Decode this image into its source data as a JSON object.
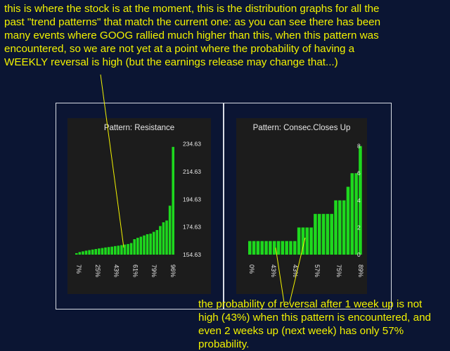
{
  "annotations": {
    "top": [
      "this is where the stock is at the moment, this is the distribution graphs for all the",
      "past \"trend patterns\" that match the current one: as you can see there has been",
      "many events where GOOG rallied much higher than this, when this pattern was",
      "encountered, so we are not yet at a point where the probability of having a",
      "WEEKLY reversal is high (but the earnings release may change that...)"
    ],
    "bottom": [
      "the probability of reversal after 1 week up is not",
      "high (43%) when this pattern is encountered, and",
      "even 2 weeks up (next week) has only 57%",
      "probability."
    ]
  },
  "colors": {
    "background": "#0b1533",
    "annotation": "#f2f200",
    "panel": "#1c1c1c",
    "bar": "#1ed81e",
    "text": "#e6e6e6",
    "frame": "#d8dce4"
  },
  "chart_data": [
    {
      "type": "bar",
      "title": "Pattern: Resistance",
      "x_tick_labels": [
        "7%",
        "25%",
        "43%",
        "61%",
        "79%",
        "96%"
      ],
      "y_tick_labels": [
        "154.63",
        "174.63",
        "194.63",
        "214.63",
        "234.63"
      ],
      "ylim": [
        154.63,
        238
      ],
      "values": [
        155.7,
        156.5,
        157.0,
        157.5,
        157.9,
        158.3,
        158.7,
        159.1,
        159.4,
        159.8,
        160.1,
        160.4,
        160.8,
        161.1,
        161.5,
        161.9,
        162.3,
        163.0,
        165.8,
        166.8,
        167.6,
        168.5,
        169.4,
        169.8,
        171.1,
        172.4,
        175.3,
        178.0,
        179.3,
        190.0,
        232.5
      ],
      "y_axis_side": "right",
      "grid": false,
      "legend": "none"
    },
    {
      "type": "bar",
      "title": "Pattern: Consec.Closes Up",
      "x_tick_labels": [
        "0%",
        "43%",
        "43%",
        "57%",
        "75%",
        "89%"
      ],
      "y_tick_labels": [
        "0",
        "2",
        "4",
        "6",
        "8"
      ],
      "ylim": [
        0,
        8.5
      ],
      "values": [
        1,
        1,
        1,
        1,
        1,
        1,
        1,
        1,
        1,
        1,
        1,
        1,
        2,
        2,
        2,
        2,
        3,
        3,
        3,
        3,
        3,
        4,
        4,
        4,
        5,
        6,
        6,
        8
      ],
      "y_axis_side": "right",
      "grid": false,
      "legend": "none"
    }
  ]
}
